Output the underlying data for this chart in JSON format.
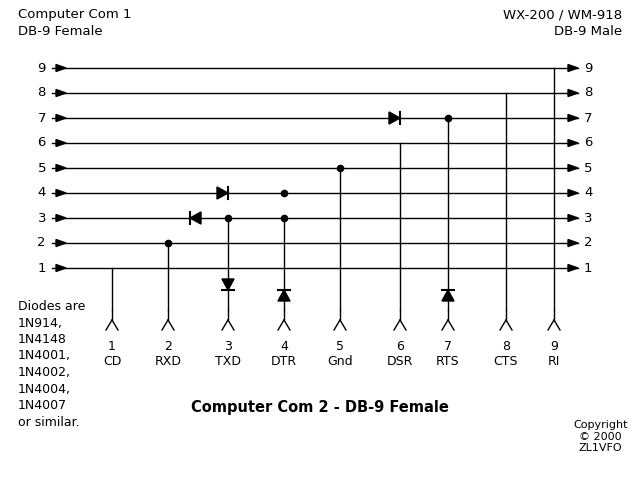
{
  "title_left": "Computer Com 1\nDB-9 Female",
  "title_right": "WX-200 / WM-918\nDB-9 Male",
  "title_bottom": "Computer Com 2 - DB-9 Female",
  "copyright": "Copyright\n© 2000\nZL1VFO",
  "diodes_text": "Diodes are\n1N914,\n1N4148\n1N4001,\n1N4002,\n1N4004,\n1N4007\nor similar.",
  "com2_labels": [
    "CD",
    "RXD",
    "TXD",
    "DTR",
    "Gnd",
    "DSR",
    "RTS",
    "CTS",
    "RI"
  ],
  "bg_color": "#ffffff"
}
